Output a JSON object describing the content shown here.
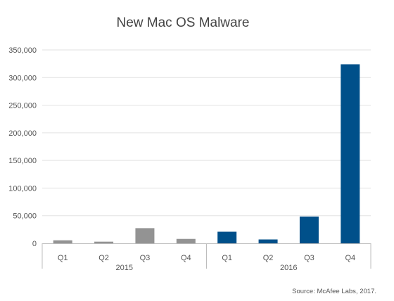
{
  "chart_data": {
    "type": "bar",
    "title": "New Mac OS Malware",
    "categories": [
      "Q1",
      "Q2",
      "Q3",
      "Q4",
      "Q1",
      "Q2",
      "Q3",
      "Q4"
    ],
    "groups": [
      {
        "label": "2015",
        "start": 0,
        "end": 3,
        "color": "#939393"
      },
      {
        "label": "2016",
        "start": 4,
        "end": 7,
        "color": "#00508a"
      }
    ],
    "values": [
      5500,
      3000,
      27500,
      8000,
      21000,
      7000,
      48500,
      324000
    ],
    "ylim": [
      0,
      350000
    ],
    "yticks": [
      0,
      50000,
      100000,
      150000,
      200000,
      250000,
      300000,
      350000
    ],
    "ytick_labels": [
      "0",
      "50,000",
      "100,000",
      "150,000",
      "200,000",
      "250,000",
      "300,000",
      "350,000"
    ],
    "grid": true,
    "xlabel": "",
    "ylabel": ""
  },
  "source": "Source: McAfee Labs, 2017."
}
